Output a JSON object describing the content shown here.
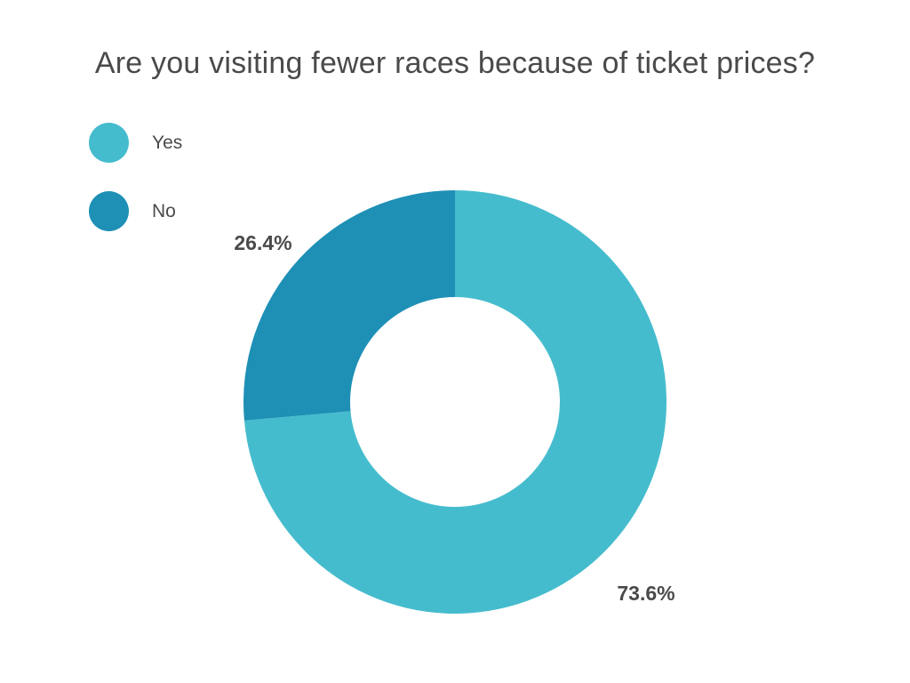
{
  "chart_data": {
    "type": "pie",
    "variant": "donut",
    "title": "Are you visiting fewer races because of ticket prices?",
    "categories": [
      "Yes",
      "No"
    ],
    "values": [
      73.6,
      26.4
    ],
    "data_labels": [
      "73.6%",
      "26.4%"
    ],
    "colors": [
      "#45bccd",
      "#1e90b6"
    ],
    "legend": "top-left"
  }
}
